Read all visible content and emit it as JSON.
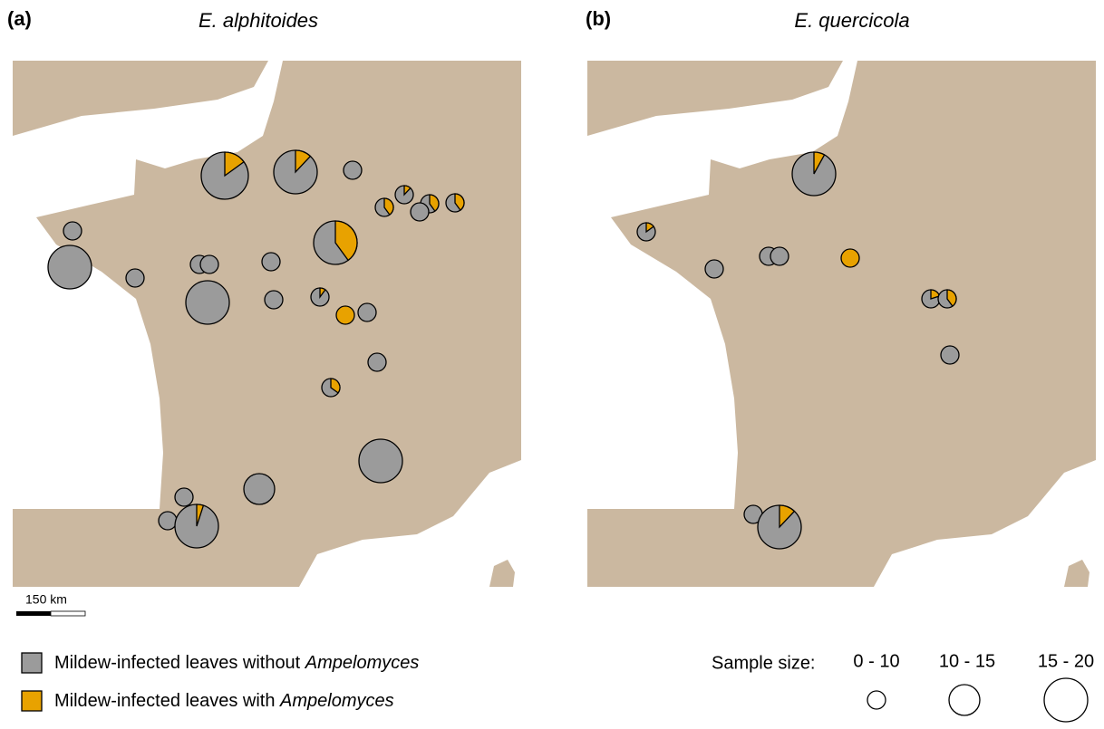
{
  "panels": [
    {
      "label": "(a)",
      "title": "E. alphitoides",
      "pies": [
        15,
        12,
        0,
        12,
        40,
        40,
        40,
        0,
        40,
        0,
        0,
        0,
        0,
        0,
        0,
        0,
        0,
        10,
        100,
        0,
        0,
        35,
        0,
        0,
        0,
        0,
        5
      ]
    },
    {
      "label": "(b)",
      "title": "E. quercicola",
      "pies": [
        8,
        15,
        0,
        0,
        0,
        100,
        20,
        40,
        0,
        0,
        12
      ]
    }
  ],
  "colors": {
    "without": "#9b9b9b",
    "with": "#e8a200"
  },
  "scale_bar": "150 km",
  "legend": {
    "without_prefix": "Mildew-infected leaves without ",
    "without_italic": "Ampelomyces",
    "with_prefix": "Mildew-infected leaves with ",
    "with_italic": "Ampelomyces"
  },
  "sample_size": {
    "title": "Sample size:",
    "classes": [
      "0 - 10",
      "10 - 15",
      "15 - 20"
    ]
  }
}
